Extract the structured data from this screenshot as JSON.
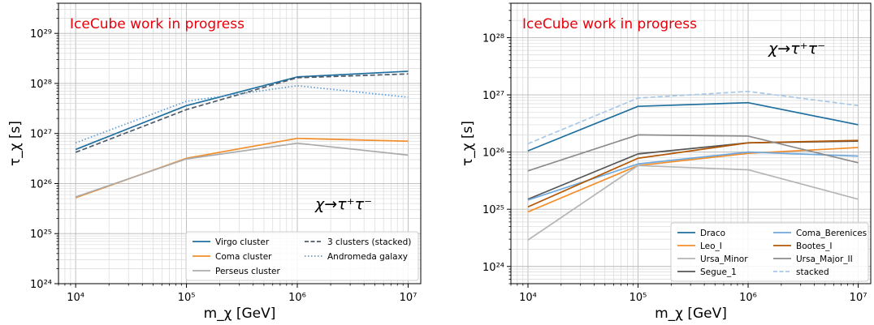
{
  "chart_data": [
    {
      "type": "line",
      "annotation": "IceCube work in progress",
      "process": "χ→τ⁺τ⁻",
      "xlabel": "m_χ [GeV]",
      "ylabel": "τ_χ [s]",
      "xscale": "log",
      "yscale": "log",
      "xlim": [
        7000,
        13000000
      ],
      "ylim": [
        1e+24,
        4e+29
      ],
      "x_ticks": [
        10000,
        100000,
        1000000,
        10000000
      ],
      "x_tick_labels": [
        "10⁴",
        "10⁵",
        "10⁶",
        "10⁷"
      ],
      "y_ticks": [
        1e+24,
        1e+25,
        1e+26,
        1e+27,
        1e+28,
        1e+29
      ],
      "y_tick_labels": [
        "10²⁴",
        "10²⁵",
        "10²⁶",
        "10²⁷",
        "10²⁸",
        "10²⁹"
      ],
      "grid": true,
      "legend_position": "lower-right",
      "legend_columns": 2,
      "x": [
        10000,
        100000,
        1000000,
        10000000
      ],
      "series": [
        {
          "name": "Virgo cluster",
          "values": [
            4.8e+26,
            3.6e+27,
            1.35e+28,
            1.75e+28
          ],
          "color": "#1f6f9f",
          "dash": "solid"
        },
        {
          "name": "Coma cluster",
          "values": [
            5.2e+25,
            3.2e+26,
            8e+26,
            7e+26
          ],
          "color": "#f28e2b",
          "dash": "solid"
        },
        {
          "name": "Perseus cluster",
          "values": [
            5.4e+25,
            3.1e+26,
            6.4e+26,
            3.7e+26
          ],
          "color": "#ababab",
          "dash": "solid"
        },
        {
          "name": "3 clusters (stacked)",
          "values": [
            4.2e+26,
            3e+27,
            1.3e+28,
            1.55e+28
          ],
          "color": "#4d5a6a",
          "dash": "dashed"
        },
        {
          "name": "Andromeda galaxy",
          "values": [
            6.5e+26,
            4.4e+27,
            9e+27,
            5.3e+27
          ],
          "color": "#5b9bd5",
          "dash": "dotted"
        }
      ]
    },
    {
      "type": "line",
      "annotation": "IceCube work in progress",
      "process": "χ→τ⁺τ⁻",
      "xlabel": "m_χ [GeV]",
      "ylabel": "τ_χ [s]",
      "xscale": "log",
      "yscale": "log",
      "xlim": [
        7000,
        13000000
      ],
      "ylim": [
        5e+23,
        4e+28
      ],
      "x_ticks": [
        10000,
        100000,
        1000000,
        10000000
      ],
      "x_tick_labels": [
        "10⁴",
        "10⁵",
        "10⁶",
        "10⁷"
      ],
      "y_ticks": [
        1e+24,
        1e+25,
        1e+26,
        1e+27,
        1e+28
      ],
      "y_tick_labels": [
        "10²⁴",
        "10²⁵",
        "10²⁶",
        "10²⁷",
        "10²⁸"
      ],
      "grid": true,
      "legend_position": "lower-right",
      "legend_columns": 2,
      "x": [
        10000,
        100000,
        1000000,
        10000000
      ],
      "series": [
        {
          "name": "Draco",
          "values": [
            1.05e+26,
            6.3e+26,
            7.3e+26,
            3e+26
          ],
          "color": "#1f6f9f",
          "dash": "solid"
        },
        {
          "name": "Leo_I",
          "values": [
            9e+24,
            5.8e+25,
            9.5e+25,
            1.2e+26
          ],
          "color": "#f28e2b",
          "dash": "solid"
        },
        {
          "name": "Ursa_Minor",
          "values": [
            2.9e+24,
            5.8e+25,
            4.9e+25,
            1.5e+25
          ],
          "color": "#b5b5b5",
          "dash": "solid"
        },
        {
          "name": "Segue_1",
          "values": [
            1.5e+25,
            9.3e+25,
            1.45e+26,
            1.55e+26
          ],
          "color": "#555555",
          "dash": "solid"
        },
        {
          "name": "Coma_Berenices",
          "values": [
            1.45e+25,
            6.2e+25,
            1e+26,
            8.5e+25
          ],
          "color": "#6fa8dc",
          "dash": "solid"
        },
        {
          "name": "Bootes_I",
          "values": [
            1.1e+25,
            7.8e+25,
            1.45e+26,
            1.6e+26
          ],
          "color": "#b35806",
          "dash": "solid"
        },
        {
          "name": "Ursa_Major_II",
          "values": [
            4.7e+25,
            2e+26,
            1.9e+26,
            6.5e+25
          ],
          "color": "#8c8c8c",
          "dash": "solid"
        },
        {
          "name": "stacked",
          "values": [
            1.4e+26,
            8.8e+26,
            1.15e+27,
            6.5e+26
          ],
          "color": "#a8c8e8",
          "dash": "dashed"
        }
      ]
    }
  ]
}
